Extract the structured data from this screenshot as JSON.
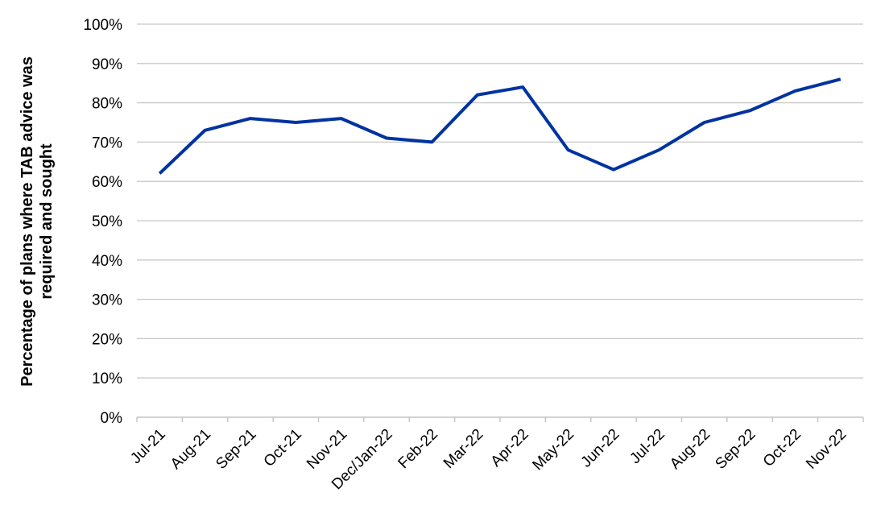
{
  "chart_data": {
    "type": "line",
    "ylabel": [
      "Percentage of plans where TAB advice was",
      "required and sought"
    ],
    "categories": [
      "Jul-21",
      "Aug-21",
      "Sep-21",
      "Oct-21",
      "Nov-21",
      "Dec/Jan-22",
      "Feb-22",
      "Mar-22",
      "Apr-22",
      "May-22",
      "Jun-22",
      "Jul-22",
      "Aug-22",
      "Sep-22",
      "Oct-22",
      "Nov-22"
    ],
    "series": [
      {
        "color": "#0033a0",
        "values": [
          62,
          73,
          76,
          75,
          76,
          71,
          70,
          82,
          84,
          68,
          63,
          68,
          75,
          78,
          83,
          86
        ]
      }
    ],
    "ylim": [
      0,
      100
    ],
    "yticks": [
      {
        "value": 0,
        "label": "0%"
      },
      {
        "value": 10,
        "label": "10%"
      },
      {
        "value": 20,
        "label": "20%"
      },
      {
        "value": 30,
        "label": "30%"
      },
      {
        "value": 40,
        "label": "40%"
      },
      {
        "value": 50,
        "label": "50%"
      },
      {
        "value": 60,
        "label": "60%"
      },
      {
        "value": 70,
        "label": "70%"
      },
      {
        "value": 80,
        "label": "80%"
      },
      {
        "value": 90,
        "label": "90%"
      },
      {
        "value": 100,
        "label": "100%"
      }
    ],
    "grid": true
  }
}
